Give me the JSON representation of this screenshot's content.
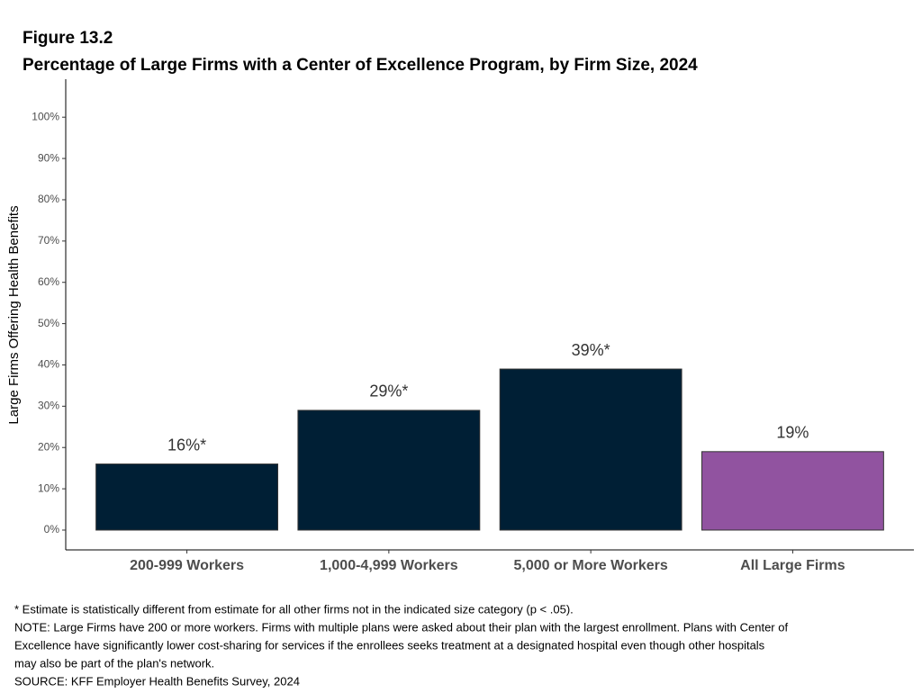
{
  "chart_data": {
    "type": "bar",
    "title": "Figure 13.2",
    "subtitle": "Percentage of Large Firms with a Center of Excellence Program, by Firm Size, 2024",
    "y_label": "Large Firms Offering Health Benefits",
    "categories": [
      "200-999 Workers",
      "1,000-4,999 Workers",
      "5,000 or More Workers",
      "All Large Firms"
    ],
    "values": [
      16,
      29,
      39,
      19
    ],
    "value_labels": [
      "16%*",
      "29%*",
      "39%*",
      "19%"
    ],
    "colors": [
      "#001f35",
      "#001f35",
      "#001f35",
      "#9153a0"
    ],
    "ylim": [
      -4.8,
      109.2
    ],
    "yticks": [
      {
        "value": 0,
        "label": "0%"
      },
      {
        "value": 10,
        "label": "10%"
      },
      {
        "value": 20,
        "label": "20%"
      },
      {
        "value": 30,
        "label": "30%"
      },
      {
        "value": 40,
        "label": "40%"
      },
      {
        "value": 50,
        "label": "50%"
      },
      {
        "value": 60,
        "label": "60%"
      },
      {
        "value": 70,
        "label": "70%"
      },
      {
        "value": 80,
        "label": "80%"
      },
      {
        "value": 90,
        "label": "90%"
      },
      {
        "value": 100,
        "label": "100%"
      }
    ],
    "grid": false,
    "notes": [
      "* Estimate is statistically different from estimate for all other firms not in the indicated size category (p < .05).",
      "NOTE: Large Firms have 200 or more workers.  Firms with multiple plans were asked about their plan with the largest enrollment.  Plans with Center of",
      "Excellence have significantly lower cost-sharing for services if the enrollees seeks treatment at a designated hospital even though other hospitals",
      "may also be part of the plan's network.",
      "SOURCE: KFF Employer Health Benefits Survey, 2024"
    ]
  }
}
